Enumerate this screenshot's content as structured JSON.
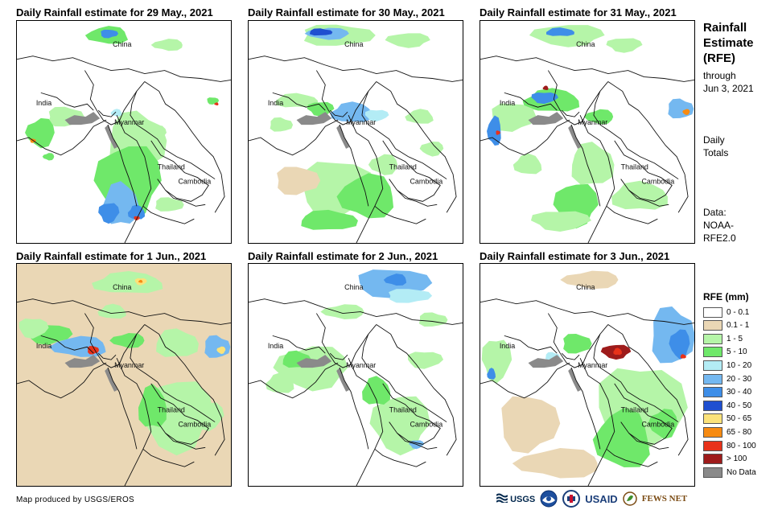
{
  "panels": [
    {
      "title": "Daily Rainfall estimate for 29 May., 2021",
      "scene": "d29"
    },
    {
      "title": "Daily Rainfall estimate for 30 May., 2021",
      "scene": "d30"
    },
    {
      "title": "Daily Rainfall estimate for 31 May., 2021",
      "scene": "d31"
    },
    {
      "title": "Daily Rainfall estimate for 1 Jun., 2021",
      "scene": "j1"
    },
    {
      "title": "Daily Rainfall estimate for 2 Jun., 2021",
      "scene": "j2"
    },
    {
      "title": "Daily Rainfall estimate for 3 Jun., 2021",
      "scene": "j3"
    }
  ],
  "places": {
    "china": "China",
    "india": "India",
    "myanmar": "Myanmar",
    "thailand": "Thailand",
    "cambodia": "Cambodia"
  },
  "sidebar": {
    "title_line1": "Rainfall",
    "title_line2": "Estimate",
    "title_line3": "(RFE)",
    "through_label": "through",
    "through_date": "Jun 3, 2021",
    "totals_line1": "Daily",
    "totals_line2": "Totals",
    "data_line1": "Data:",
    "data_line2": "NOAA-",
    "data_line3": "RFE2.0"
  },
  "legend": {
    "title": "RFE (mm)",
    "items": [
      {
        "label": "0 - 0.1",
        "color": "#ffffff"
      },
      {
        "label": "0.1 - 1",
        "color": "#ead7b5"
      },
      {
        "label": "1 - 5",
        "color": "#b5f5a8"
      },
      {
        "label": "5 - 10",
        "color": "#6fe86a"
      },
      {
        "label": "10 - 20",
        "color": "#b3ecf5"
      },
      {
        "label": "20 - 30",
        "color": "#74b8f0"
      },
      {
        "label": "30 - 40",
        "color": "#3e8ee8"
      },
      {
        "label": "40 - 50",
        "color": "#1f4fd0"
      },
      {
        "label": "50 - 65",
        "color": "#fbe27a"
      },
      {
        "label": "65 - 80",
        "color": "#f78b12"
      },
      {
        "label": "80 - 100",
        "color": "#e8321a"
      },
      {
        "label": "> 100",
        "color": "#9e1b1b"
      },
      {
        "label": "No Data",
        "color": "#8a8a8a"
      }
    ]
  },
  "footer": {
    "credit": "Map produced by USGS/EROS"
  },
  "logos": {
    "usgs": "USGS",
    "usaid": "USAID",
    "fewsnet": "FEWS NET"
  }
}
